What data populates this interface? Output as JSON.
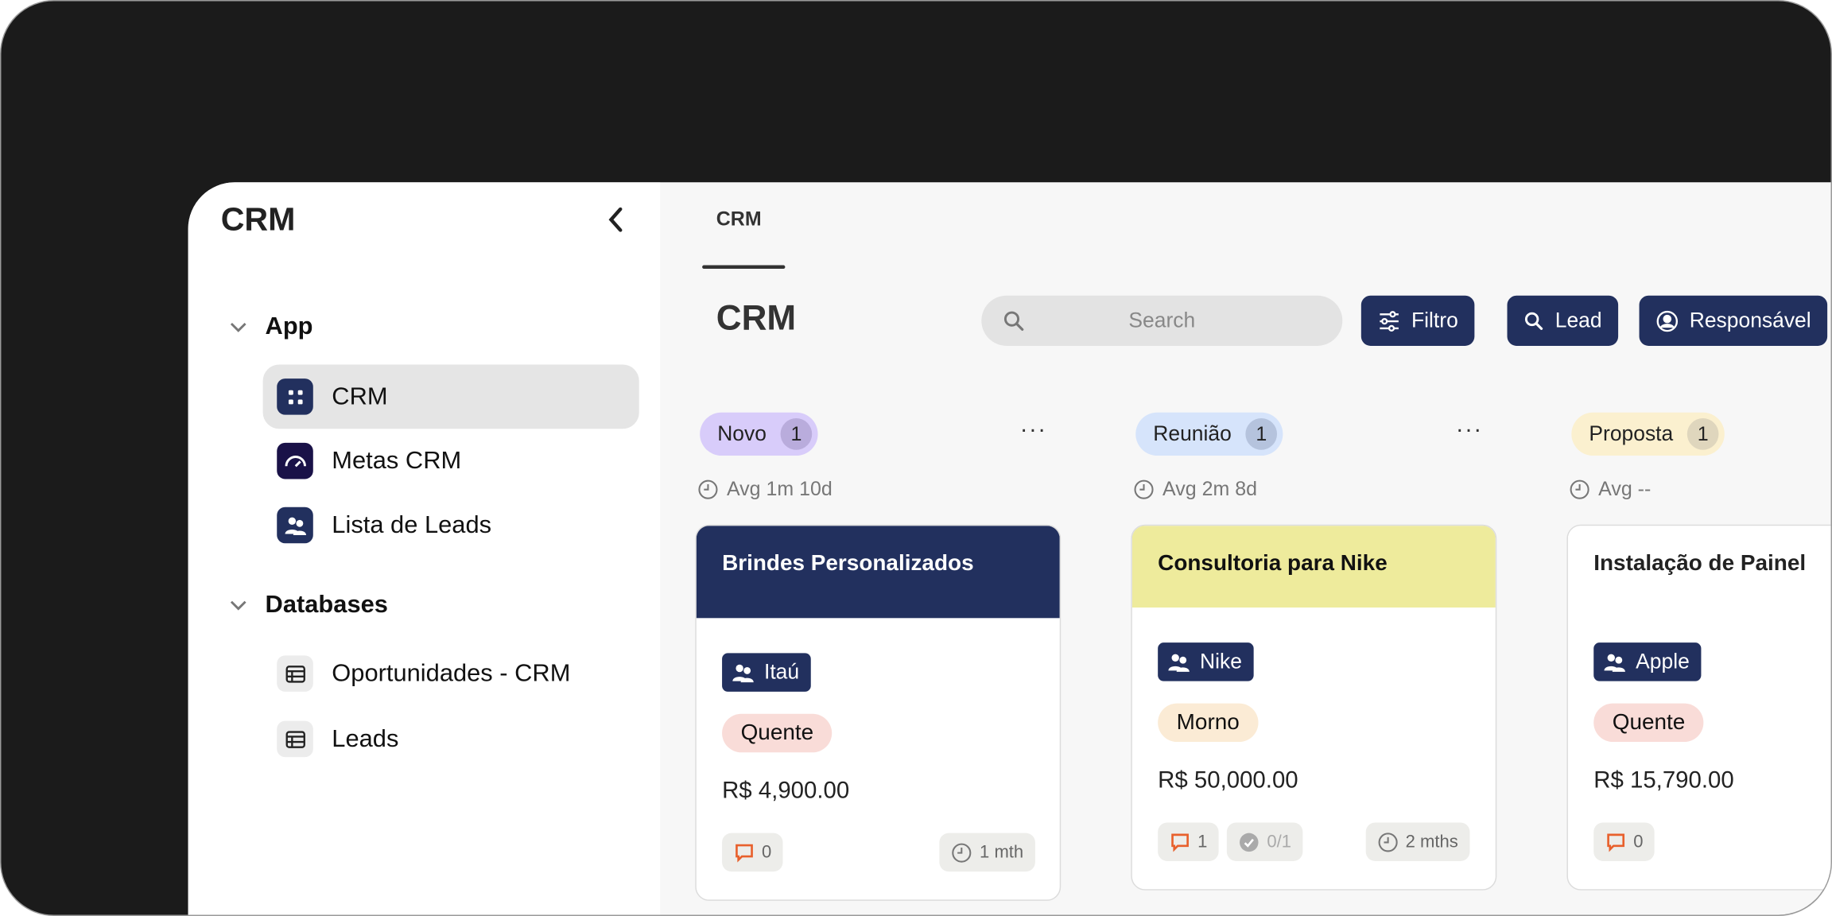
{
  "sidebar": {
    "title": "CRM",
    "sections": [
      {
        "label": "App",
        "items": [
          {
            "label": "CRM",
            "icon": "grid-icon",
            "active": true
          },
          {
            "label": "Metas CRM",
            "icon": "gauge-icon"
          },
          {
            "label": "Lista de Leads",
            "icon": "users-icon"
          }
        ]
      },
      {
        "label": "Databases",
        "items": [
          {
            "label": "Oportunidades - CRM",
            "icon": "table-icon"
          },
          {
            "label": "Leads",
            "icon": "table-icon"
          }
        ]
      }
    ]
  },
  "main": {
    "tab": "CRM",
    "heading": "CRM",
    "search_placeholder": "Search",
    "buttons": {
      "filter": "Filtro",
      "lead": "Lead",
      "owner": "Responsável"
    }
  },
  "colors": {
    "navy": "#22305e",
    "novo": "#d8ccfa",
    "reuniao": "#d6e4fb",
    "proposta": "#fbf0cf",
    "quente": "#f9dcd8",
    "morno": "#fbebd5",
    "yellow_header": "#eeeb9c"
  },
  "columns": [
    {
      "name": "Novo",
      "count": "1",
      "avg": "Avg 1m 10d",
      "card": {
        "title": "Brindes Personalizados",
        "company": "Itaú",
        "temp": "Quente",
        "price": "R$ 4,900.00",
        "comments": "0",
        "age": "1 mth"
      }
    },
    {
      "name": "Reunião",
      "count": "1",
      "avg": "Avg 2m 8d",
      "card": {
        "title": "Consultoria para Nike",
        "company": "Nike",
        "temp": "Morno",
        "price": "R$ 50,000.00",
        "comments": "1",
        "tasks": "0/1",
        "age": "2 mths"
      }
    },
    {
      "name": "Proposta",
      "count": "1",
      "avg": "Avg --",
      "card": {
        "title": "Instalação de Painel",
        "company": "Apple",
        "temp": "Quente",
        "price": "R$ 15,790.00",
        "comments": "0"
      }
    }
  ]
}
